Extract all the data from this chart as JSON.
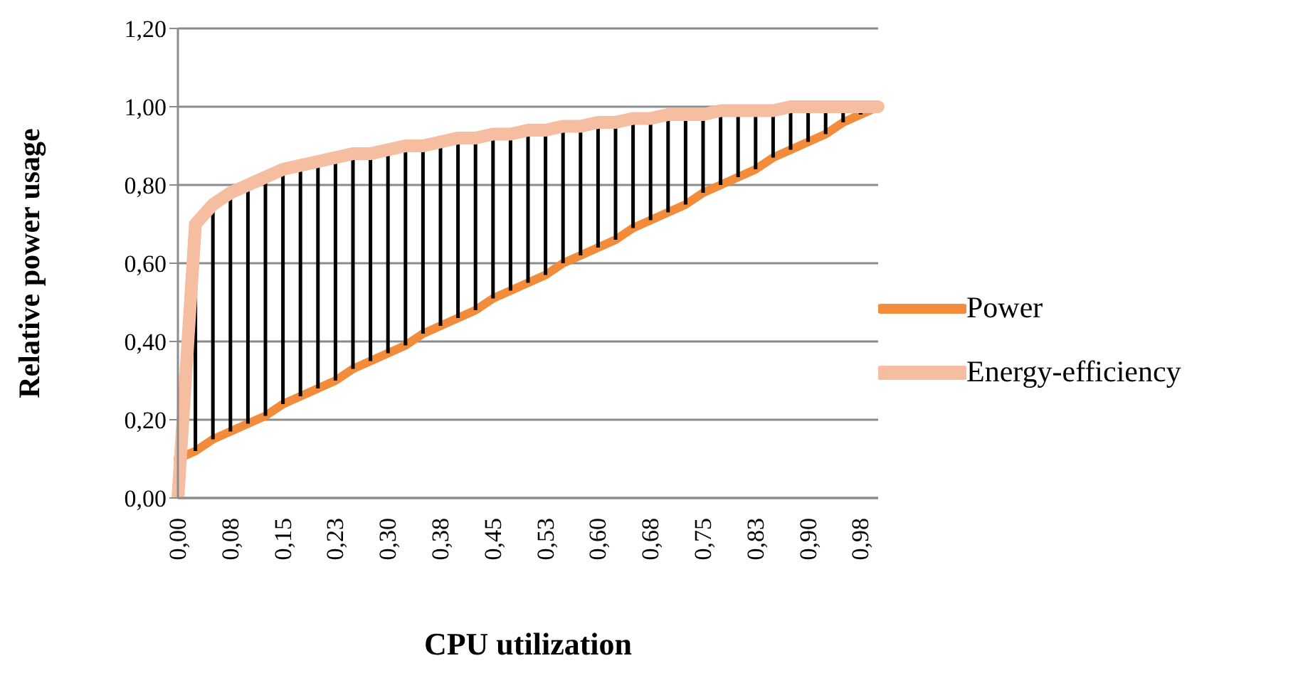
{
  "chart_data": {
    "type": "line",
    "xlabel": "CPU utilization",
    "ylabel": "Relative power usage",
    "categories": [
      "0,00",
      null,
      null,
      "0,08",
      null,
      null,
      "0,15",
      null,
      null,
      "0,23",
      null,
      null,
      "0,30",
      null,
      null,
      "0,38",
      null,
      null,
      "0,45",
      null,
      null,
      "0,53",
      null,
      null,
      "0,60",
      null,
      null,
      "0,68",
      null,
      null,
      "0,75",
      null,
      null,
      "0,83",
      null,
      null,
      "0,90",
      null,
      null,
      "0,98",
      null
    ],
    "series": [
      {
        "name": "Power",
        "color": "#f28c3a",
        "values": [
          0.1,
          0.12,
          0.15,
          0.17,
          0.19,
          0.21,
          0.24,
          0.26,
          0.28,
          0.3,
          0.33,
          0.35,
          0.37,
          0.39,
          0.42,
          0.44,
          0.46,
          0.48,
          0.51,
          0.53,
          0.55,
          0.57,
          0.6,
          0.62,
          0.64,
          0.66,
          0.69,
          0.71,
          0.73,
          0.75,
          0.78,
          0.8,
          0.82,
          0.84,
          0.87,
          0.89,
          0.91,
          0.93,
          0.96,
          0.98,
          1.0
        ]
      },
      {
        "name": "Energy-efficiency",
        "color": "#f5bea0",
        "values": [
          0.0,
          0.7,
          0.75,
          0.78,
          0.8,
          0.82,
          0.84,
          0.85,
          0.86,
          0.87,
          0.88,
          0.88,
          0.89,
          0.9,
          0.9,
          0.91,
          0.92,
          0.92,
          0.93,
          0.93,
          0.94,
          0.94,
          0.95,
          0.95,
          0.96,
          0.96,
          0.97,
          0.97,
          0.98,
          0.98,
          0.98,
          0.99,
          0.99,
          0.99,
          0.99,
          1.0,
          1.0,
          1.0,
          1.0,
          1.0,
          1.0
        ],
        "errors": [
          [
            0.0,
            0.1
          ],
          [
            0.12,
            0.7
          ],
          [
            0.15,
            0.75
          ],
          [
            0.17,
            0.78
          ],
          [
            0.19,
            0.8
          ],
          [
            0.21,
            0.82
          ],
          [
            0.24,
            0.84
          ],
          [
            0.26,
            0.85
          ],
          [
            0.28,
            0.86
          ],
          [
            0.3,
            0.87
          ],
          [
            0.33,
            0.88
          ],
          [
            0.35,
            0.88
          ],
          [
            0.37,
            0.89
          ],
          [
            0.39,
            0.9
          ],
          [
            0.42,
            0.9
          ],
          [
            0.44,
            0.91
          ],
          [
            0.46,
            0.92
          ],
          [
            0.48,
            0.92
          ],
          [
            0.51,
            0.93
          ],
          [
            0.53,
            0.93
          ],
          [
            0.55,
            0.94
          ],
          [
            0.57,
            0.94
          ],
          [
            0.6,
            0.95
          ],
          [
            0.62,
            0.95
          ],
          [
            0.64,
            0.96
          ],
          [
            0.66,
            0.96
          ],
          [
            0.69,
            0.97
          ],
          [
            0.71,
            0.97
          ],
          [
            0.73,
            0.98
          ],
          [
            0.75,
            0.98
          ],
          [
            0.78,
            0.98
          ],
          [
            0.8,
            0.99
          ],
          [
            0.82,
            0.99
          ],
          [
            0.84,
            0.99
          ],
          [
            0.87,
            0.99
          ],
          [
            0.89,
            1.0
          ],
          [
            0.91,
            1.0
          ],
          [
            0.93,
            1.0
          ],
          [
            0.96,
            1.0
          ],
          [
            0.98,
            1.0
          ],
          [
            1.0,
            1.0
          ]
        ]
      }
    ],
    "ylim": [
      0,
      1.2
    ],
    "yticks": [
      {
        "value": 0,
        "label": "0,00"
      },
      {
        "value": 0.2,
        "label": "0,20"
      },
      {
        "value": 0.4,
        "label": "0,40"
      },
      {
        "value": 0.6,
        "label": "0,60"
      },
      {
        "value": 0.8,
        "label": "0,80"
      },
      {
        "value": 1.0,
        "label": "1,00"
      },
      {
        "value": 1.2,
        "label": "1,20"
      }
    ],
    "grid": "y",
    "legend": "right",
    "marker": "none",
    "line_style": "solid"
  }
}
